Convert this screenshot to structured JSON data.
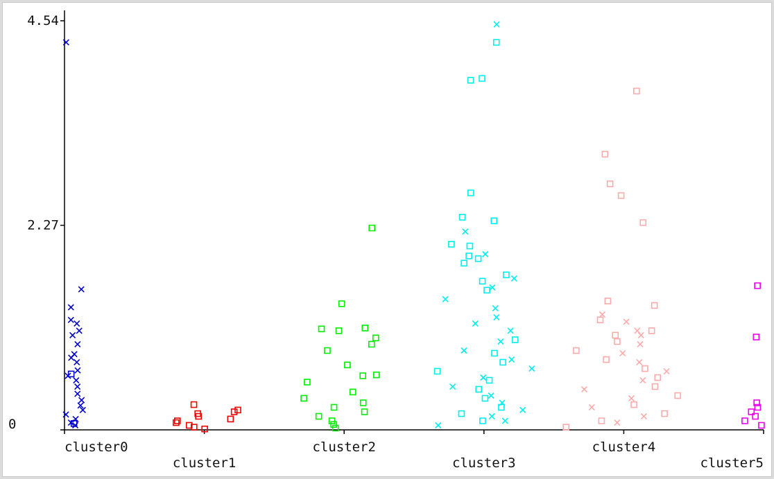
{
  "chart_data": {
    "type": "scatter",
    "title": "",
    "xlabel": "",
    "ylabel": "",
    "y_ticks": [
      "4.54",
      "2.27",
      "0"
    ],
    "y_tick_values": [
      4.54,
      2.27,
      0
    ],
    "ylim": [
      0,
      4.54
    ],
    "categories": [
      "cluster0",
      "cluster1",
      "cluster2",
      "cluster3",
      "cluster4",
      "cluster5"
    ],
    "category_positions": [
      0,
      1,
      2,
      3,
      4,
      5
    ],
    "xlim": [
      0,
      5
    ],
    "grid": false,
    "legend": "none",
    "series": [
      {
        "category": "cluster0",
        "color": "#0000cc",
        "jitter_spread": 0.22,
        "marker_x_values": [
          4.3,
          1.56,
          1.36,
          1.22,
          1.18,
          1.1,
          1.05,
          0.95,
          0.84,
          0.8,
          0.75,
          0.66,
          0.6,
          0.55,
          0.48,
          0.4,
          0.33,
          0.27,
          0.22,
          0.17,
          0.12,
          0.08,
          0.05
        ],
        "marker_square_values": [
          0.62,
          0.07
        ]
      },
      {
        "category": "cluster1",
        "color": "#ee0000",
        "jitter_spread": 0.3,
        "marker_x_values": [],
        "marker_square_values": [
          0.28,
          0.22,
          0.2,
          0.18,
          0.15,
          0.12,
          0.1,
          0.08,
          0.05,
          0.03,
          0.01
        ]
      },
      {
        "category": "cluster2",
        "color": "#00ee00",
        "jitter_spread": 0.38,
        "marker_x_values": [],
        "marker_square_values": [
          2.24,
          1.4,
          1.13,
          1.12,
          1.1,
          1.02,
          0.95,
          0.88,
          0.72,
          0.61,
          0.6,
          0.53,
          0.42,
          0.35,
          0.3,
          0.25,
          0.2,
          0.15,
          0.1,
          0.06,
          0.02
        ]
      },
      {
        "category": "cluster3",
        "color": "#00eeee",
        "jitter_spread": 0.4,
        "marker_x_values": [
          4.5,
          2.2,
          1.95,
          1.68,
          1.58,
          1.45,
          1.35,
          1.25,
          1.18,
          1.1,
          0.98,
          0.88,
          0.78,
          0.68,
          0.58,
          0.48,
          0.38,
          0.3,
          0.22,
          0.15,
          0.1,
          0.05
        ],
        "marker_square_values": [
          4.3,
          3.9,
          3.88,
          2.63,
          2.36,
          2.32,
          2.06,
          2.04,
          1.93,
          1.9,
          1.85,
          1.72,
          1.65,
          1.55,
          1.0,
          0.85,
          0.75,
          0.65,
          0.55,
          0.45,
          0.35,
          0.25,
          0.18,
          0.1
        ]
      },
      {
        "category": "cluster4",
        "color": "#ffaaaa",
        "jitter_spread": 0.42,
        "marker_x_values": [
          1.28,
          1.2,
          1.1,
          1.05,
          0.95,
          0.85,
          0.75,
          0.65,
          0.55,
          0.45,
          0.35,
          0.25,
          0.15,
          0.08
        ],
        "marker_square_values": [
          3.76,
          3.06,
          2.73,
          2.6,
          2.3,
          1.43,
          1.38,
          1.22,
          1.1,
          1.05,
          0.98,
          0.88,
          0.78,
          0.68,
          0.58,
          0.48,
          0.38,
          0.28,
          0.18,
          0.1,
          0.03
        ]
      },
      {
        "category": "cluster5",
        "color": "#ee00ee",
        "jitter_spread": 0.2,
        "marker_x_values": [],
        "marker_square_values": [
          1.6,
          1.03,
          0.3,
          0.25,
          0.2,
          0.15,
          0.1,
          0.05
        ]
      }
    ]
  }
}
